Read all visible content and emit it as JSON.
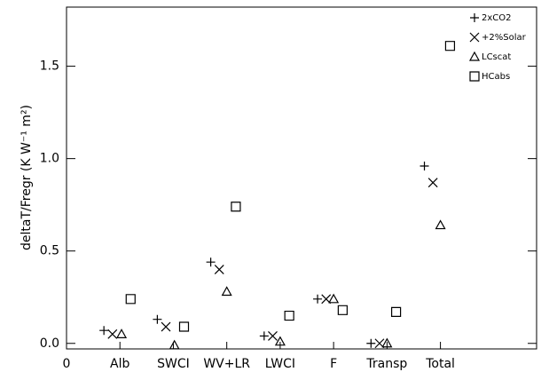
{
  "chart_data": {
    "type": "scatter",
    "y_label": "deltaT/Fregr (K W⁻¹ m²)",
    "xlim": [
      0,
      8.8
    ],
    "xticks": [
      0,
      {
        "value": 1,
        "label": "Alb"
      },
      {
        "value": 2,
        "label": "SWCI"
      },
      {
        "value": 3,
        "label": "WV+LR"
      },
      {
        "value": 4,
        "label": "LWCI"
      },
      {
        "value": 5,
        "label": "F"
      },
      {
        "value": 6,
        "label": "Transp"
      },
      {
        "value": 7,
        "label": "Total"
      }
    ],
    "ylim": [
      -0.03,
      1.82
    ],
    "yticks": [
      {
        "value": 0,
        "label": "0.0"
      },
      0.5,
      {
        "value": 1,
        "label": "1.0"
      },
      1.5
    ],
    "legend": "upper right",
    "series": [
      {
        "name": "2xCO2",
        "color": "#000000",
        "marker": "plus",
        "x": [
          0.7,
          1.7,
          2.7,
          3.7,
          4.7,
          5.7,
          6.7
        ],
        "values": [
          0.07,
          0.13,
          0.44,
          0.04,
          0.24,
          0.0,
          0.96
        ]
      },
      {
        "name": "+2%Solar",
        "color": "#000000",
        "marker": "x",
        "x": [
          0.86,
          1.86,
          2.86,
          3.86,
          4.86,
          5.86,
          6.86
        ],
        "values": [
          0.05,
          0.09,
          0.4,
          0.04,
          0.24,
          0.0,
          0.87
        ]
      },
      {
        "name": "LCscat",
        "color": "#000000",
        "marker": "triangle",
        "x": [
          1.03,
          2.02,
          3.0,
          4.0,
          5.0,
          6.0,
          7.0
        ],
        "values": [
          0.05,
          -0.01,
          0.28,
          0.01,
          0.24,
          0.0,
          0.64
        ]
      },
      {
        "name": "HCabs",
        "color": "#000000",
        "marker": "square",
        "x": [
          1.2,
          2.2,
          3.17,
          4.17,
          5.17,
          6.17,
          7.18
        ],
        "values": [
          0.24,
          0.09,
          0.74,
          0.15,
          0.18,
          0.17,
          1.61
        ]
      }
    ]
  }
}
